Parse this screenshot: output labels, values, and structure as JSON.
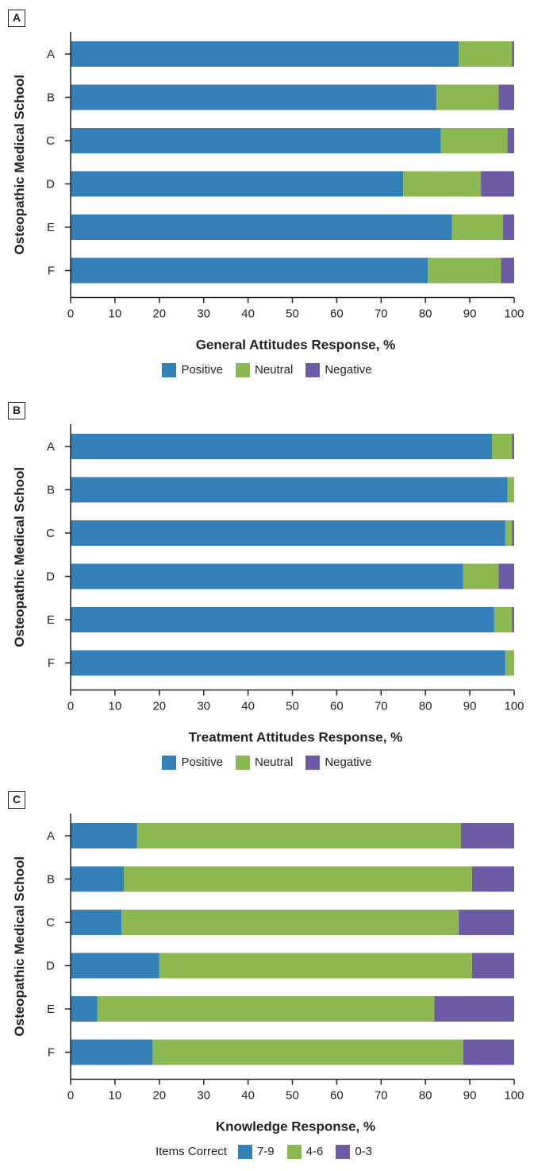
{
  "colors": {
    "positive": "#3480b8",
    "neutral": "#8cb851",
    "negative": "#6d5ba6",
    "axis": "#222222"
  },
  "ylabel": "Osteopathic Medical School",
  "chart_data": [
    {
      "panel": "A",
      "type": "bar",
      "orientation": "horizontal",
      "stacked": true,
      "categories": [
        "A",
        "B",
        "C",
        "D",
        "E",
        "F"
      ],
      "series": [
        {
          "name": "Positive",
          "color": "#3480b8",
          "values": [
            87.5,
            82.5,
            83.5,
            75,
            86,
            80.5
          ]
        },
        {
          "name": "Neutral",
          "color": "#8cb851",
          "values": [
            12,
            14,
            15,
            17.5,
            11.5,
            16.5
          ]
        },
        {
          "name": "Negative",
          "color": "#6d5ba6",
          "values": [
            0.5,
            3.5,
            1.5,
            7.5,
            2.5,
            3
          ]
        }
      ],
      "xlabel": "General Attitudes Response, %",
      "ylabel": "Osteopathic Medical School",
      "xlim": [
        0,
        100
      ],
      "xticks": [
        "0",
        "10",
        "20",
        "30",
        "40",
        "50",
        "60",
        "70",
        "80",
        "90",
        "100"
      ],
      "legend_prefix": "",
      "legend_position": "bottom"
    },
    {
      "panel": "B",
      "type": "bar",
      "orientation": "horizontal",
      "stacked": true,
      "categories": [
        "A",
        "B",
        "C",
        "D",
        "E",
        "F"
      ],
      "series": [
        {
          "name": "Positive",
          "color": "#3480b8",
          "values": [
            95,
            98.5,
            98,
            88.5,
            95.5,
            98
          ]
        },
        {
          "name": "Neutral",
          "color": "#8cb851",
          "values": [
            4.5,
            1.5,
            1.5,
            8,
            4,
            2
          ]
        },
        {
          "name": "Negative",
          "color": "#6d5ba6",
          "values": [
            0.5,
            0,
            0.5,
            3.5,
            0.5,
            0.3
          ]
        }
      ],
      "xlabel": "Treatment Attitudes Response, %",
      "ylabel": "Osteopathic Medical School",
      "xlim": [
        0,
        100
      ],
      "xticks": [
        "0",
        "10",
        "20",
        "30",
        "40",
        "50",
        "60",
        "70",
        "80",
        "90",
        "100"
      ],
      "legend_prefix": "",
      "legend_position": "bottom"
    },
    {
      "panel": "C",
      "type": "bar",
      "orientation": "horizontal",
      "stacked": true,
      "categories": [
        "A",
        "B",
        "C",
        "D",
        "E",
        "F"
      ],
      "series": [
        {
          "name": "7-9",
          "color": "#3480b8",
          "values": [
            15,
            12,
            11.5,
            20,
            6,
            18.5
          ]
        },
        {
          "name": "4-6",
          "color": "#8cb851",
          "values": [
            73,
            78.5,
            76,
            70.5,
            76,
            70
          ]
        },
        {
          "name": "0-3",
          "color": "#6d5ba6",
          "values": [
            12,
            9.5,
            12.5,
            9.5,
            18,
            11.5
          ]
        }
      ],
      "xlabel": "Knowledge Response, %",
      "ylabel": "Osteopathic Medical School",
      "xlim": [
        0,
        100
      ],
      "xticks": [
        "0",
        "10",
        "20",
        "30",
        "40",
        "50",
        "60",
        "70",
        "80",
        "90",
        "100"
      ],
      "legend_prefix": "Items Correct",
      "legend_position": "bottom"
    }
  ]
}
